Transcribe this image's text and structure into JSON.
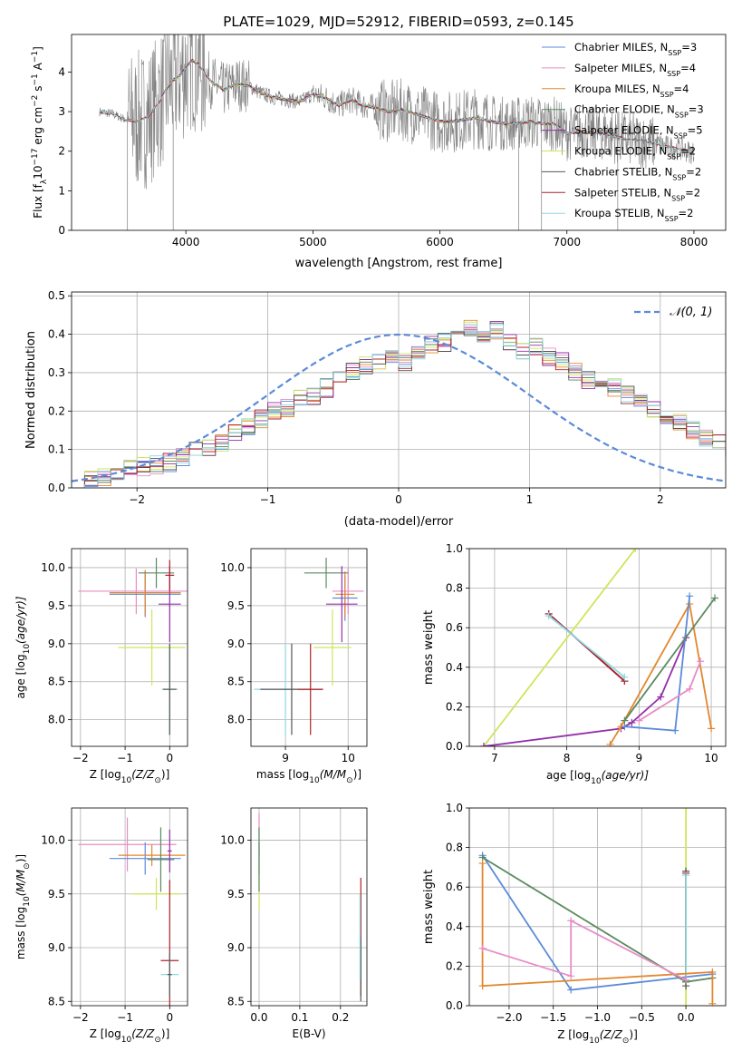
{
  "figure_title": "PLATE=1029, MJD=52912, FIBERID=0593, z=0.145",
  "colors": {
    "Chabrier MILES": "#5b8bd9",
    "Salpeter MILES": "#e88cc4",
    "Kroupa MILES": "#e3872e",
    "Chabrier ELODIE": "#5a8a5e",
    "Salpeter ELODIE": "#9330a8",
    "Kroupa ELODIE": "#cde65a",
    "Chabrier STELIB": "#555555",
    "Salpeter STELIB": "#b0202a",
    "Kroupa STELIB": "#8fd8e0",
    "data": "#808080"
  },
  "chart_data": [
    {
      "id": "spectrum",
      "type": "line",
      "title": "PLATE=1029, MJD=52912, FIBERID=0593, z=0.145",
      "xlabel": "wavelength [Angstrom, rest frame]",
      "ylabel_main": "Flux [f",
      "ylabel_sub": "λ",
      "ylabel_rest": "10",
      "ylabel_sup1": "−17",
      "ylabel_rest2": " erg cm",
      "ylabel_sup2": "−2",
      "ylabel_rest3": " s",
      "ylabel_sup3": "−1",
      "ylabel_rest4": " A",
      "ylabel_sup4": "−1",
      "ylabel_end": "]",
      "xlim": [
        3100,
        8250
      ],
      "ylim": [
        0,
        4.95
      ],
      "xticks": [
        4000,
        5000,
        6000,
        7000,
        8000
      ],
      "yticks": [
        0,
        1,
        2,
        3,
        4
      ],
      "legend": [
        {
          "label": "Chabrier MILES, N",
          "sub": "SSP",
          "val": "=3"
        },
        {
          "label": "Salpeter MILES, N",
          "sub": "SSP",
          "val": "=4"
        },
        {
          "label": "Kroupa MILES, N",
          "sub": "SSP",
          "val": "=4"
        },
        {
          "label": "Chabrier ELODIE, N",
          "sub": "SSP",
          "val": "=3"
        },
        {
          "label": "Salpeter ELODIE, N",
          "sub": "SSP",
          "val": "=5"
        },
        {
          "label": "Kroupa ELODIE, N",
          "sub": "SSP",
          "val": "=2"
        },
        {
          "label": "Chabrier STELIB, N",
          "sub": "SSP",
          "val": "=2"
        },
        {
          "label": "Salpeter STELIB, N",
          "sub": "SSP",
          "val": "=2"
        },
        {
          "label": "Kroupa STELIB, N",
          "sub": "SSP",
          "val": "=2"
        }
      ],
      "continuum": [
        [
          3320,
          3.0
        ],
        [
          3420,
          2.95
        ],
        [
          3520,
          2.8
        ],
        [
          3600,
          2.75
        ],
        [
          3700,
          2.85
        ],
        [
          3800,
          3.3
        ],
        [
          3850,
          3.6
        ],
        [
          3900,
          3.8
        ],
        [
          3950,
          3.9
        ],
        [
          4000,
          4.1
        ],
        [
          4050,
          4.3
        ],
        [
          4100,
          4.2
        ],
        [
          4200,
          3.75
        ],
        [
          4300,
          3.55
        ],
        [
          4400,
          3.7
        ],
        [
          4500,
          3.65
        ],
        [
          4600,
          3.45
        ],
        [
          4700,
          3.35
        ],
        [
          4800,
          3.3
        ],
        [
          4900,
          3.25
        ],
        [
          5000,
          3.45
        ],
        [
          5100,
          3.35
        ],
        [
          5200,
          3.15
        ],
        [
          5300,
          3.3
        ],
        [
          5400,
          3.15
        ],
        [
          5500,
          3.1
        ],
        [
          5600,
          3.0
        ],
        [
          5700,
          3.05
        ],
        [
          5800,
          2.95
        ],
        [
          5900,
          2.85
        ],
        [
          6000,
          2.75
        ],
        [
          6100,
          2.75
        ],
        [
          6200,
          2.8
        ],
        [
          6300,
          2.85
        ],
        [
          6400,
          2.75
        ],
        [
          6500,
          2.7
        ],
        [
          6600,
          2.7
        ],
        [
          6700,
          2.75
        ],
        [
          6800,
          2.7
        ],
        [
          6900,
          2.7
        ],
        [
          7000,
          2.45
        ],
        [
          7100,
          2.5
        ],
        [
          7200,
          2.45
        ],
        [
          7300,
          2.45
        ],
        [
          7400,
          2.35
        ],
        [
          7500,
          2.3
        ],
        [
          7600,
          2.25
        ],
        [
          7700,
          2.2
        ],
        [
          7800,
          2.1
        ],
        [
          7900,
          2.05
        ],
        [
          8000,
          1.95
        ]
      ]
    },
    {
      "id": "residuals",
      "type": "step",
      "xlabel": "(data-model)/error",
      "ylabel": "Normed distribution",
      "xlim": [
        -2.5,
        2.5
      ],
      "ylim": [
        0,
        0.51
      ],
      "xticks": [
        -2,
        -1,
        0,
        1,
        2
      ],
      "yticks": [
        0.0,
        0.1,
        0.2,
        0.3,
        0.4,
        0.5
      ],
      "bin_width": 0.1,
      "legend": {
        "label": "𝒩(0, 1)"
      },
      "histogram": [
        0.025,
        0.025,
        0.03,
        0.04,
        0.05,
        0.055,
        0.06,
        0.065,
        0.08,
        0.095,
        0.105,
        0.12,
        0.14,
        0.16,
        0.18,
        0.2,
        0.21,
        0.23,
        0.24,
        0.26,
        0.28,
        0.3,
        0.32,
        0.33,
        0.34,
        0.33,
        0.35,
        0.37,
        0.38,
        0.39,
        0.42,
        0.4,
        0.41,
        0.38,
        0.36,
        0.37,
        0.34,
        0.33,
        0.3,
        0.28,
        0.27,
        0.26,
        0.24,
        0.22,
        0.2,
        0.18,
        0.17,
        0.15,
        0.13,
        0.12,
        0.1,
        0.09,
        0.08,
        0.07,
        0.06,
        0.05,
        0.04,
        0.035,
        0.03,
        0.025
      ]
    },
    {
      "id": "age_vs_Z",
      "type": "errorbar",
      "xlabel_main": "Z [log",
      "xlabel_sub": "10",
      "xlabel_rest": "(Z/Z",
      "xlabel_sub2": "⊙",
      "xlabel_end": ")]",
      "ylabel_main": "age  [log",
      "ylabel_sub": "10",
      "ylabel_end": "(age/yr)]",
      "xlim": [
        -2.2,
        0.4
      ],
      "ylim": [
        7.65,
        10.25
      ],
      "xticks": [
        -2,
        -1,
        0
      ],
      "yticks": [
        8.0,
        8.5,
        9.0,
        9.5,
        10.0
      ],
      "points": [
        {
          "model": "Salpeter MILES",
          "x": -0.75,
          "xerr": 1.3,
          "y": 9.69,
          "yerr": 0.3
        },
        {
          "model": "Chabrier MILES",
          "x": -0.55,
          "xerr": 0.8,
          "y": 9.65,
          "yerr": 0.3
        },
        {
          "model": "Kroupa MILES",
          "x": -0.55,
          "xerr": 0.8,
          "y": 9.67,
          "yerr": 0.3
        },
        {
          "model": "Chabrier ELODIE",
          "x": -0.3,
          "xerr": 0.4,
          "y": 9.93,
          "yerr": 0.2
        },
        {
          "model": "Kroupa ELODIE",
          "x": -0.4,
          "xerr": 0.75,
          "y": 8.95,
          "yerr": 0.5
        },
        {
          "model": "Salpeter ELODIE",
          "x": 0.0,
          "xerr": 0.25,
          "y": 9.52,
          "yerr": 0.5
        },
        {
          "model": "Kroupa STELIB",
          "x": 0.0,
          "xerr": 0.18,
          "y": 8.4,
          "yerr": 0.6
        },
        {
          "model": "Chabrier STELIB",
          "x": 0.0,
          "xerr": 0.15,
          "y": 8.4,
          "yerr": 0.6
        },
        {
          "model": "Salpeter STELIB",
          "x": 0.0,
          "xerr": 0.1,
          "y": 9.9,
          "yerr": 0.2
        }
      ]
    },
    {
      "id": "age_vs_mass",
      "type": "errorbar",
      "xlabel_main": "mass [log",
      "xlabel_sub": "10",
      "xlabel_rest": "(M/M",
      "xlabel_sub2": "⊙",
      "xlabel_end": ")]",
      "xlim": [
        8.45,
        10.3
      ],
      "ylim": [
        7.65,
        10.25
      ],
      "xticks": [
        9,
        10
      ],
      "yticks": [
        8.0,
        8.5,
        9.0,
        9.5,
        10.0
      ],
      "points": [
        {
          "model": "Salpeter MILES",
          "x": 10.0,
          "xerr": 0.25,
          "y": 9.69,
          "yerr": 0.3
        },
        {
          "model": "Chabrier MILES",
          "x": 9.95,
          "xerr": 0.2,
          "y": 9.6,
          "yerr": 0.3
        },
        {
          "model": "Kroupa MILES",
          "x": 9.95,
          "xerr": 0.15,
          "y": 9.65,
          "yerr": 0.3
        },
        {
          "model": "Chabrier ELODIE",
          "x": 9.65,
          "xerr": 0.35,
          "y": 9.93,
          "yerr": 0.2
        },
        {
          "model": "Kroupa ELODIE",
          "x": 9.75,
          "xerr": 0.3,
          "y": 8.95,
          "yerr": 0.5
        },
        {
          "model": "Salpeter ELODIE",
          "x": 9.9,
          "xerr": 0.25,
          "y": 9.52,
          "yerr": 0.5
        },
        {
          "model": "Kroupa STELIB",
          "x": 9.0,
          "xerr": 0.5,
          "y": 8.4,
          "yerr": 0.6
        },
        {
          "model": "Chabrier STELIB",
          "x": 9.1,
          "xerr": 0.5,
          "y": 8.4,
          "yerr": 0.6
        },
        {
          "model": "Salpeter STELIB",
          "x": 9.4,
          "xerr": 0.2,
          "y": 8.4,
          "yerr": 0.6
        }
      ]
    },
    {
      "id": "weight_vs_age",
      "type": "line",
      "xlabel_main": "age  [log",
      "xlabel_sub": "10",
      "xlabel_end": "(age/yr)]",
      "ylabel": "mass weight",
      "xlim": [
        6.65,
        10.2
      ],
      "ylim": [
        0,
        1.0
      ],
      "xticks": [
        7,
        8,
        9,
        10
      ],
      "yticks": [
        0.0,
        0.2,
        0.4,
        0.6,
        0.8,
        1.0
      ],
      "series": [
        {
          "model": "Kroupa ELODIE",
          "points": [
            [
              6.85,
              0.0
            ],
            [
              8.95,
              1.0
            ]
          ]
        },
        {
          "model": "Salpeter ELODIE",
          "points": [
            [
              6.85,
              0.0
            ],
            [
              8.75,
              0.09
            ],
            [
              8.9,
              0.12
            ],
            [
              9.3,
              0.25
            ],
            [
              9.65,
              0.55
            ]
          ]
        },
        {
          "model": "Chabrier STELIB",
          "points": [
            [
              7.75,
              0.67
            ],
            [
              8.8,
              0.33
            ]
          ]
        },
        {
          "model": "Salpeter STELIB",
          "points": [
            [
              7.75,
              0.67
            ],
            [
              8.8,
              0.33
            ]
          ]
        },
        {
          "model": "Kroupa STELIB",
          "points": [
            [
              7.75,
              0.66
            ],
            [
              8.8,
              0.35
            ]
          ]
        },
        {
          "model": "Kroupa MILES",
          "points": [
            [
              8.6,
              0.01
            ],
            [
              8.75,
              0.1
            ],
            [
              9.7,
              0.72
            ],
            [
              10.0,
              0.09
            ]
          ]
        },
        {
          "model": "Chabrier MILES",
          "points": [
            [
              8.8,
              0.1
            ],
            [
              9.5,
              0.08
            ],
            [
              9.7,
              0.76
            ]
          ]
        },
        {
          "model": "Chabrier ELODIE",
          "points": [
            [
              8.8,
              0.13
            ],
            [
              10.05,
              0.75
            ]
          ]
        },
        {
          "model": "Salpeter MILES",
          "points": [
            [
              9.0,
              0.13
            ],
            [
              9.7,
              0.29
            ],
            [
              9.85,
              0.43
            ]
          ]
        }
      ]
    },
    {
      "id": "mass_vs_Z",
      "type": "errorbar",
      "xlabel_main": "Z [log",
      "xlabel_sub": "10",
      "xlabel_rest": "(Z/Z",
      "xlabel_sub2": "⊙",
      "xlabel_end": ")]",
      "ylabel_main": "mass [log",
      "ylabel_sub": "10",
      "ylabel_rest": "(M/M",
      "ylabel_sub2": "⊙",
      "ylabel_end": ")]",
      "xlim": [
        -2.2,
        0.4
      ],
      "ylim": [
        8.46,
        10.3
      ],
      "xticks": [
        -2,
        -1,
        0
      ],
      "yticks": [
        8.5,
        9.0,
        9.5,
        10.0
      ],
      "points": [
        {
          "model": "Salpeter MILES",
          "x": -0.95,
          "xerr": 1.1,
          "y": 9.96,
          "yerr": 0.25
        },
        {
          "model": "Chabrier MILES",
          "x": -0.55,
          "xerr": 0.8,
          "y": 9.83,
          "yerr": 0.15
        },
        {
          "model": "Kroupa MILES",
          "x": -0.4,
          "xerr": 0.75,
          "y": 9.86,
          "yerr": 0.1
        },
        {
          "model": "Chabrier ELODIE",
          "x": -0.2,
          "xerr": 0.3,
          "y": 9.82,
          "yerr": 0.3
        },
        {
          "model": "Kroupa ELODIE",
          "x": -0.3,
          "xerr": 0.55,
          "y": 9.5,
          "yerr": 0.15
        },
        {
          "model": "Salpeter ELODIE",
          "x": 0.0,
          "xerr": 0.05,
          "y": 9.9,
          "yerr": 0.2
        },
        {
          "model": "Salpeter STELIB",
          "x": 0.0,
          "xerr": 0.2,
          "y": 8.88,
          "yerr": 0.75
        },
        {
          "model": "Kroupa STELIB",
          "x": 0.0,
          "xerr": 0.2,
          "y": 8.75,
          "yerr": 0.2
        },
        {
          "model": "Chabrier STELIB",
          "x": 0.0,
          "xerr": 0.05,
          "y": 8.75,
          "yerr": 0.2
        }
      ]
    },
    {
      "id": "mass_vs_ebv",
      "type": "errorbar",
      "xlabel": "E(B-V)",
      "xlim": [
        -0.02,
        0.265
      ],
      "ylim": [
        8.46,
        10.3
      ],
      "xticks": [
        0.0,
        0.1,
        0.2
      ],
      "yticks": [
        8.5,
        9.0,
        9.5,
        10.0
      ],
      "points": [
        {
          "model": "Salpeter MILES",
          "x": 0.0,
          "xerr": 0.0,
          "y": 10.05,
          "yerr": 0.2
        },
        {
          "model": "Chabrier MILES",
          "x": 0.0,
          "xerr": 0.0,
          "y": 9.83,
          "yerr": 0.15
        },
        {
          "model": "Kroupa ELODIE",
          "x": 0.0,
          "xerr": 0.0,
          "y": 9.6,
          "yerr": 0.25
        },
        {
          "model": "Chabrier ELODIE",
          "x": 0.0,
          "xerr": 0.0,
          "y": 9.82,
          "yerr": 0.3
        },
        {
          "model": "Salpeter STELIB",
          "x": 0.25,
          "xerr": 0.0,
          "y": 9.1,
          "yerr": 0.55
        },
        {
          "model": "Chabrier STELIB",
          "x": 0.25,
          "xerr": 0.0,
          "y": 8.8,
          "yerr": 0.3
        },
        {
          "model": "Kroupa STELIB",
          "x": 0.248,
          "xerr": 0.0,
          "y": 9.1,
          "yerr": 0.4
        }
      ]
    },
    {
      "id": "weight_vs_Z",
      "type": "line",
      "xlabel_main": "Z [log",
      "xlabel_sub": "10",
      "xlabel_rest": "(Z/Z",
      "xlabel_sub2": "⊙",
      "xlabel_end": ")]",
      "ylabel": "mass weight",
      "xlim": [
        -2.45,
        0.45
      ],
      "ylim": [
        0,
        1.0
      ],
      "xticks": [
        -2.0,
        -1.5,
        -1.0,
        -0.5,
        0.0
      ],
      "xticklabels": [
        "−2.0",
        "−1.5",
        "−1.0",
        "−0.5",
        "0.0"
      ],
      "yticks": [
        0.0,
        0.2,
        0.4,
        0.6,
        0.8,
        1.0
      ],
      "series": [
        {
          "model": "Kroupa ELODIE",
          "points": [
            [
              0.0,
              0.0
            ],
            [
              0.0,
              1.0
            ]
          ]
        },
        {
          "model": "Chabrier STELIB",
          "points": [
            [
              0.0,
              0.1
            ],
            [
              0.0,
              0.68
            ]
          ]
        },
        {
          "model": "Salpeter STELIB",
          "points": [
            [
              0.0,
              0.12
            ],
            [
              0.0,
              0.67
            ]
          ]
        },
        {
          "model": "Kroupa STELIB",
          "points": [
            [
              0.0,
              0.12
            ],
            [
              0.0,
              0.66
            ]
          ]
        },
        {
          "model": "Chabrier MILES",
          "points": [
            [
              -2.3,
              0.76
            ],
            [
              -1.3,
              0.08
            ],
            [
              0.3,
              0.16
            ]
          ]
        },
        {
          "model": "Chabrier ELODIE",
          "points": [
            [
              -2.3,
              0.75
            ],
            [
              0.0,
              0.12
            ],
            [
              0.3,
              0.14
            ]
          ]
        },
        {
          "model": "Kroupa MILES",
          "points": [
            [
              -2.3,
              0.72
            ],
            [
              -2.3,
              0.1
            ],
            [
              0.3,
              0.17
            ],
            [
              0.3,
              0.01
            ]
          ]
        },
        {
          "model": "Salpeter MILES",
          "points": [
            [
              -2.3,
              0.29
            ],
            [
              -1.3,
              0.15
            ],
            [
              -1.3,
              0.43
            ],
            [
              0.0,
              0.13
            ]
          ]
        }
      ]
    }
  ]
}
